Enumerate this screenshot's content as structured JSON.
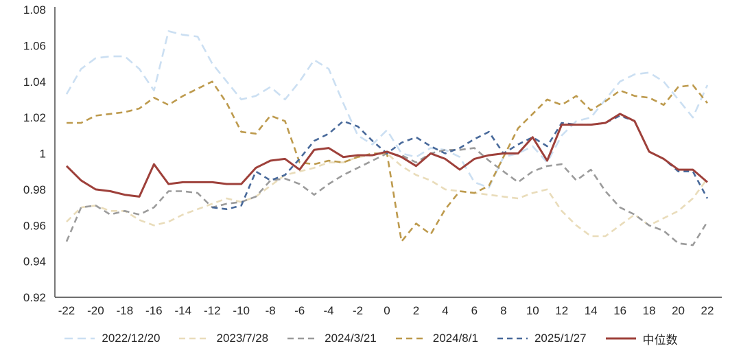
{
  "chart_data": {
    "type": "line",
    "title": "",
    "xlabel": "",
    "ylabel": "",
    "grid": false,
    "legend_position": "bottom",
    "axis_color": "#3f3f3f",
    "text_color": "#262626",
    "xlim": [
      -22.8,
      22.8
    ],
    "ylim": [
      0.92,
      1.08
    ],
    "xticks": [
      -22,
      -20,
      -18,
      -16,
      -14,
      -12,
      -10,
      -8,
      -6,
      -4,
      -2,
      0,
      2,
      4,
      6,
      8,
      10,
      12,
      14,
      16,
      18,
      20,
      22
    ],
    "yticks": [
      0.92,
      0.94,
      0.96,
      0.98,
      1,
      1.02,
      1.04,
      1.06,
      1.08
    ],
    "x": [
      -22,
      -21,
      -20,
      -19,
      -18,
      -17,
      -16,
      -15,
      -14,
      -13,
      -12,
      -11,
      -10,
      -9,
      -8,
      -7,
      -6,
      -5,
      -4,
      -3,
      -2,
      -1,
      0,
      1,
      2,
      3,
      4,
      5,
      6,
      7,
      8,
      9,
      10,
      11,
      12,
      13,
      14,
      15,
      16,
      17,
      18,
      19,
      20,
      21,
      22
    ],
    "series": [
      {
        "name": "2022/12/20",
        "color": "#cbdff2",
        "dash": "12 7",
        "width": 2.6,
        "values": [
          1.033,
          1.047,
          1.053,
          1.054,
          1.054,
          1.047,
          1.035,
          1.068,
          1.066,
          1.065,
          1.05,
          1.04,
          1.03,
          1.032,
          1.037,
          1.03,
          1.04,
          1.052,
          1.047,
          1.028,
          1.01,
          1.005,
          1.013,
          1.0,
          0.998,
          1.003,
          1.002,
          0.998,
          0.984,
          0.981,
          0.998,
          1.0,
          1.004,
          0.995,
          1.01,
          1.018,
          1.02,
          1.03,
          1.04,
          1.044,
          1.045,
          1.04,
          1.03,
          1.02,
          1.038
        ]
      },
      {
        "name": "2023/7/28",
        "color": "#e9dcba",
        "dash": "9 6",
        "width": 2.6,
        "values": [
          0.962,
          0.97,
          0.971,
          0.968,
          0.968,
          0.963,
          0.96,
          0.962,
          0.966,
          0.969,
          0.972,
          0.975,
          0.973,
          0.976,
          0.982,
          0.988,
          0.99,
          0.992,
          0.995,
          0.995,
          0.998,
          0.999,
          1.0,
          0.993,
          0.988,
          0.985,
          0.98,
          0.979,
          0.978,
          0.977,
          0.976,
          0.975,
          0.978,
          0.98,
          0.968,
          0.96,
          0.954,
          0.954,
          0.96,
          0.966,
          0.96,
          0.964,
          0.968,
          0.975,
          0.986
        ]
      },
      {
        "name": "2024/3/21",
        "color": "#9b9b9b",
        "dash": "9 6",
        "width": 2.6,
        "values": [
          0.951,
          0.97,
          0.971,
          0.966,
          0.968,
          0.966,
          0.97,
          0.979,
          0.979,
          0.978,
          0.97,
          0.972,
          0.973,
          0.976,
          0.985,
          0.986,
          0.983,
          0.977,
          0.983,
          0.988,
          0.992,
          0.996,
          1.0,
          0.999,
          0.995,
          1.0,
          1.002,
          1.002,
          1.003,
          0.996,
          0.99,
          0.984,
          0.99,
          0.993,
          0.994,
          0.985,
          0.991,
          0.979,
          0.97,
          0.966,
          0.96,
          0.957,
          0.95,
          0.949,
          0.962
        ]
      },
      {
        "name": "2024/8/1",
        "color": "#bd9a4d",
        "dash": "9 6",
        "width": 2.6,
        "values": [
          1.017,
          1.017,
          1.021,
          1.022,
          1.023,
          1.025,
          1.031,
          1.027,
          1.032,
          1.036,
          1.04,
          1.028,
          1.012,
          1.011,
          1.021,
          1.018,
          0.995,
          0.994,
          0.996,
          0.995,
          0.998,
          1.0,
          1.0,
          0.951,
          0.961,
          0.955,
          0.969,
          0.979,
          0.978,
          0.982,
          0.998,
          1.014,
          1.022,
          1.03,
          1.027,
          1.032,
          1.024,
          1.029,
          1.035,
          1.032,
          1.031,
          1.027,
          1.037,
          1.038,
          1.028
        ]
      },
      {
        "name": "2025/1/27",
        "color": "#48699a",
        "dash": "8 6",
        "width": 2.6,
        "values": [
          null,
          null,
          null,
          null,
          null,
          null,
          null,
          null,
          null,
          null,
          0.97,
          0.969,
          0.971,
          0.99,
          0.985,
          0.988,
          0.997,
          1.007,
          1.011,
          1.018,
          1.015,
          1.007,
          1.0,
          1.006,
          1.009,
          1.004,
          1.0,
          1.003,
          1.008,
          1.012,
          1.0,
          1.005,
          1.009,
          1.004,
          1.017,
          1.016,
          1.016,
          1.017,
          1.021,
          1.018,
          1.001,
          0.997,
          0.99,
          0.99,
          0.975
        ]
      },
      {
        "name": "中位数",
        "color": "#9e403a",
        "dash": null,
        "width": 3,
        "values": [
          0.993,
          0.985,
          0.98,
          0.979,
          0.977,
          0.976,
          0.994,
          0.983,
          0.984,
          0.984,
          0.984,
          0.983,
          0.983,
          0.992,
          0.996,
          0.997,
          0.991,
          1.002,
          1.003,
          0.998,
          0.999,
          0.999,
          1.001,
          0.998,
          0.993,
          1.0,
          0.997,
          0.991,
          0.997,
          0.999,
          1.0,
          1.0,
          1.009,
          0.996,
          1.016,
          1.016,
          1.016,
          1.017,
          1.022,
          1.018,
          1.001,
          0.997,
          0.991,
          0.991,
          0.984
        ]
      }
    ]
  }
}
